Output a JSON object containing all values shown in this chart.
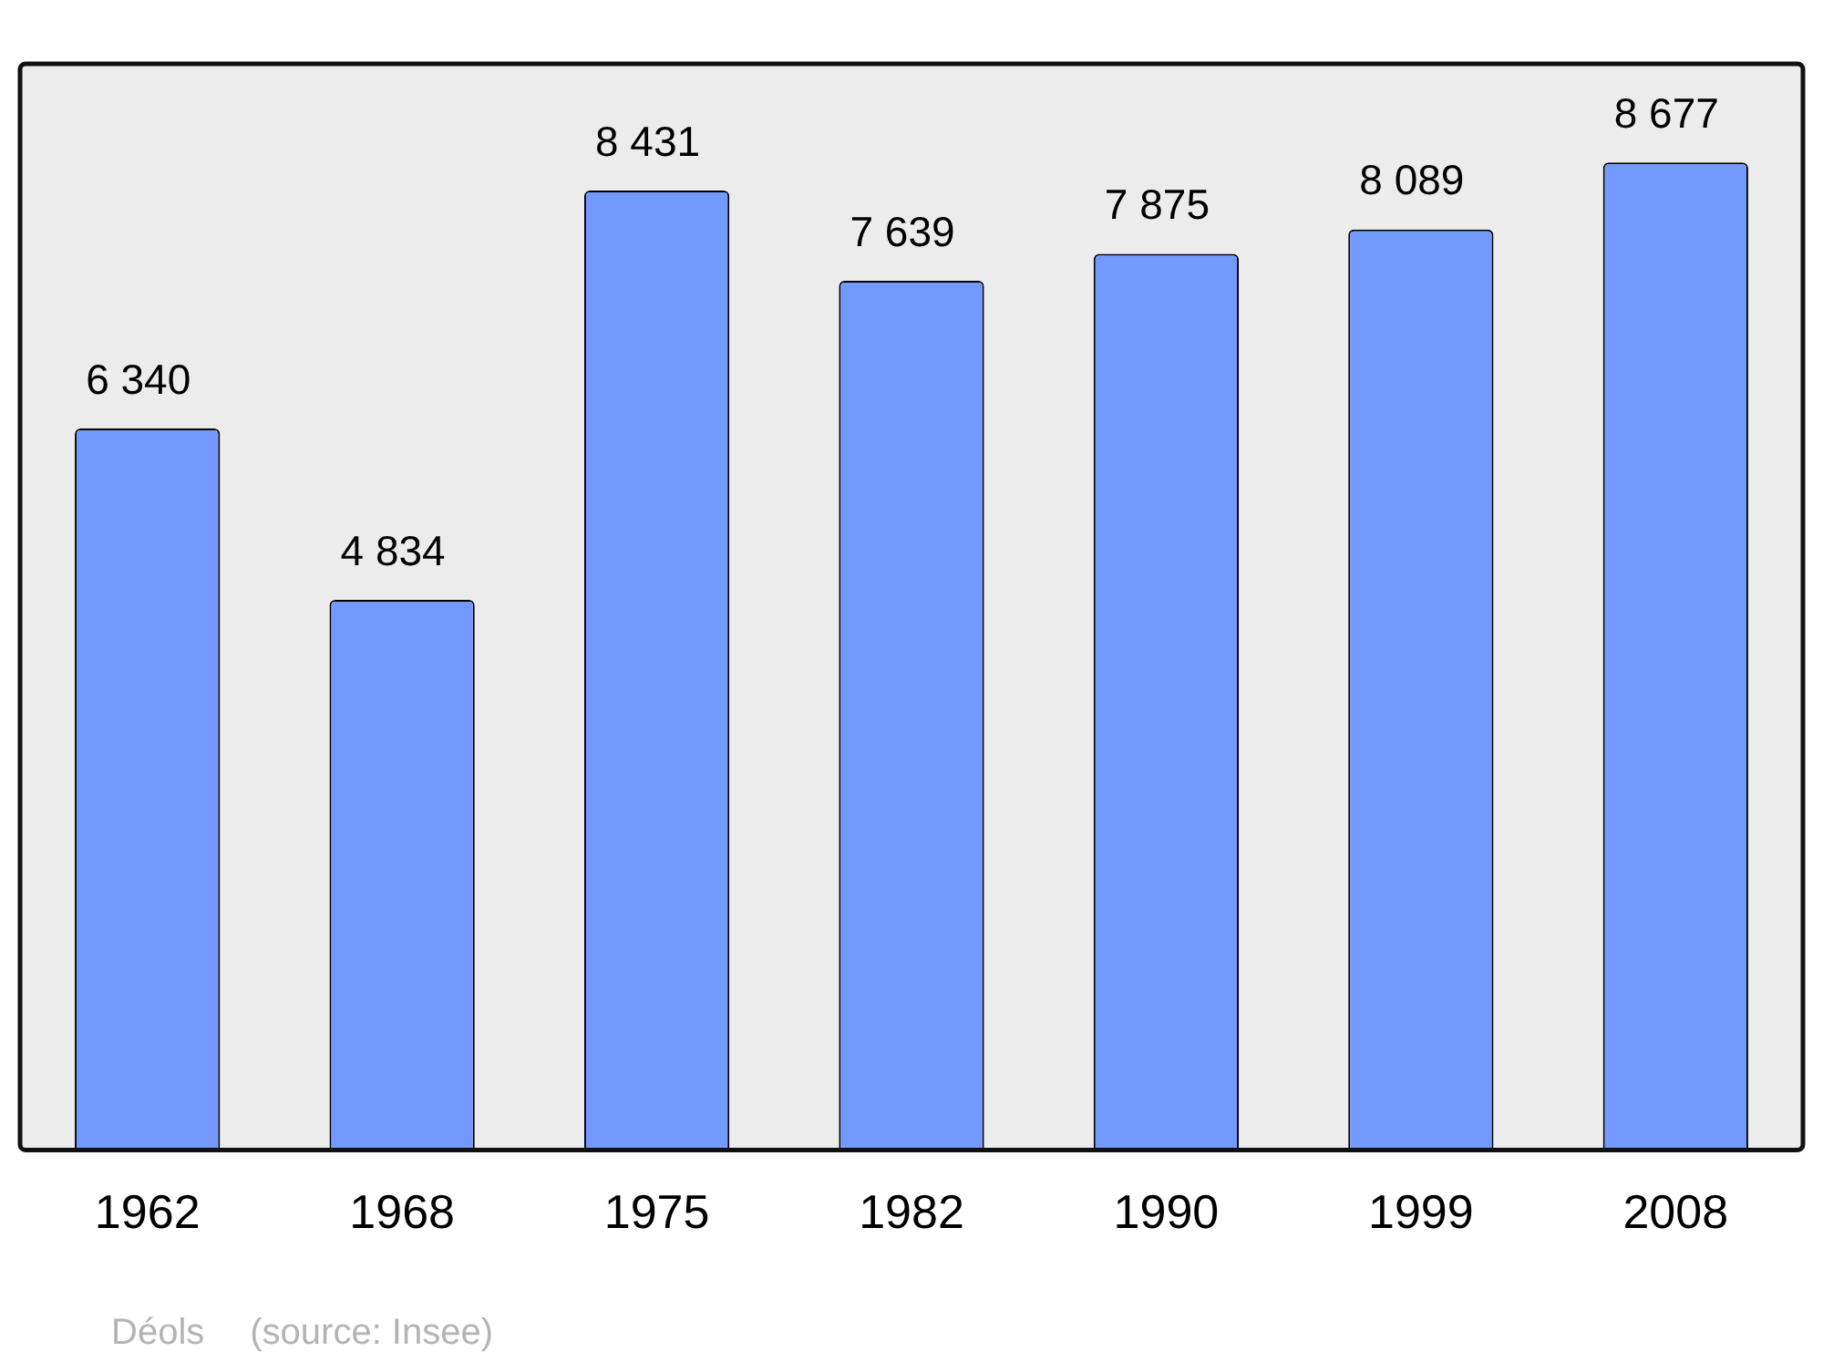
{
  "chart_data": {
    "type": "bar",
    "categories": [
      "1962",
      "1968",
      "1975",
      "1982",
      "1990",
      "1999",
      "2008"
    ],
    "values": [
      6340,
      4834,
      8431,
      7639,
      7875,
      8089,
      8677
    ],
    "value_labels": [
      "6 340",
      "4 834",
      "8 431",
      "7 639",
      "7 875",
      "8 089",
      "8 677"
    ],
    "color": "#7399ff",
    "grid": false,
    "legend": false,
    "annotations": [
      "Déols",
      "(source: Insee)"
    ]
  }
}
